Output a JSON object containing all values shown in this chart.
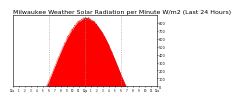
{
  "title": "Milwaukee Weather Solar Radiation per Minute W/m2 (Last 24 Hours)",
  "title_fontsize": 4.5,
  "background_color": "#ffffff",
  "fill_color": "#ff0000",
  "line_color": "#cc0000",
  "grid_color": "#999999",
  "ylim": [
    0,
    900
  ],
  "xlim": [
    0,
    1440
  ],
  "ytick_values": [
    0,
    100,
    200,
    300,
    400,
    500,
    600,
    700,
    800
  ],
  "ytick_labels": [
    "0",
    "100",
    "200",
    "300",
    "400",
    "500",
    "600",
    "700",
    "800"
  ],
  "xtick_positions": [
    0,
    60,
    120,
    180,
    240,
    300,
    360,
    420,
    480,
    540,
    600,
    660,
    720,
    780,
    840,
    900,
    960,
    1020,
    1080,
    1140,
    1200,
    1260,
    1320,
    1380,
    1440
  ],
  "xtick_labels": [
    "12a",
    "1",
    "2",
    "3",
    "4",
    "5",
    "6",
    "7",
    "8",
    "9",
    "10",
    "11",
    "12p",
    "1",
    "2",
    "3",
    "4",
    "5",
    "6",
    "7",
    "8",
    "9",
    "10",
    "11",
    "12a"
  ],
  "peak_minute": 750,
  "peak_value": 860,
  "solar_start": 335,
  "solar_end": 1130
}
